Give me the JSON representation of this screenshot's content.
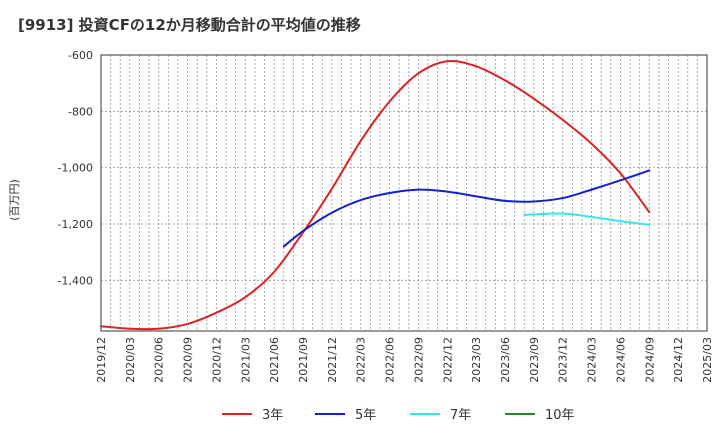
{
  "chart_data": {
    "type": "line",
    "title": "[9913]  投資CFの12か月移動合計の平均値の推移",
    "ylabel": "(百万円)",
    "xlabel": "",
    "ylim": [
      -1580,
      -600
    ],
    "yticks": [
      -600,
      -800,
      -1000,
      -1200,
      -1400
    ],
    "ytick_labels": [
      "-600",
      "-800",
      "-1,000",
      "-1,200",
      "-1,400"
    ],
    "xlim": [
      "2019-12",
      "2025-03"
    ],
    "xticks": [
      "2019/12",
      "2020/03",
      "2020/06",
      "2020/09",
      "2020/12",
      "2021/03",
      "2021/06",
      "2021/09",
      "2021/12",
      "2022/03",
      "2022/06",
      "2022/09",
      "2022/12",
      "2023/03",
      "2023/06",
      "2023/09",
      "2023/12",
      "2024/03",
      "2024/06",
      "2024/09",
      "2024/12",
      "2025/03"
    ],
    "grid": true,
    "legend_position": "bottom",
    "series": [
      {
        "name": "3年",
        "color": "#dd2222",
        "points": [
          [
            "2019-12",
            -1563
          ],
          [
            "2020-03",
            -1572
          ],
          [
            "2020-06",
            -1572
          ],
          [
            "2020-09",
            -1555
          ],
          [
            "2020-12",
            -1515
          ],
          [
            "2021-03",
            -1460
          ],
          [
            "2021-06",
            -1370
          ],
          [
            "2021-09",
            -1230
          ],
          [
            "2021-12",
            -1075
          ],
          [
            "2022-03",
            -905
          ],
          [
            "2022-06",
            -765
          ],
          [
            "2022-09",
            -665
          ],
          [
            "2022-12",
            -622
          ],
          [
            "2023-03",
            -640
          ],
          [
            "2023-06",
            -690
          ],
          [
            "2023-09",
            -755
          ],
          [
            "2023-12",
            -830
          ],
          [
            "2024-03",
            -915
          ],
          [
            "2024-06",
            -1020
          ],
          [
            "2024-09",
            -1158
          ]
        ]
      },
      {
        "name": "5年",
        "color": "#1122cc",
        "points": [
          [
            "2021-07",
            -1280
          ],
          [
            "2021-09",
            -1225
          ],
          [
            "2021-12",
            -1160
          ],
          [
            "2022-03",
            -1115
          ],
          [
            "2022-06",
            -1090
          ],
          [
            "2022-09",
            -1078
          ],
          [
            "2022-12",
            -1085
          ],
          [
            "2023-03",
            -1102
          ],
          [
            "2023-06",
            -1118
          ],
          [
            "2023-09",
            -1120
          ],
          [
            "2023-12",
            -1108
          ],
          [
            "2024-03",
            -1078
          ],
          [
            "2024-06",
            -1045
          ],
          [
            "2024-09",
            -1010
          ]
        ]
      },
      {
        "name": "7年",
        "color": "#33e6f0",
        "points": [
          [
            "2023-08",
            -1168
          ],
          [
            "2023-09",
            -1166
          ],
          [
            "2023-12",
            -1163
          ],
          [
            "2024-03",
            -1175
          ],
          [
            "2024-06",
            -1190
          ],
          [
            "2024-09",
            -1203
          ]
        ]
      },
      {
        "name": "10年",
        "color": "#228822",
        "points": []
      }
    ]
  }
}
